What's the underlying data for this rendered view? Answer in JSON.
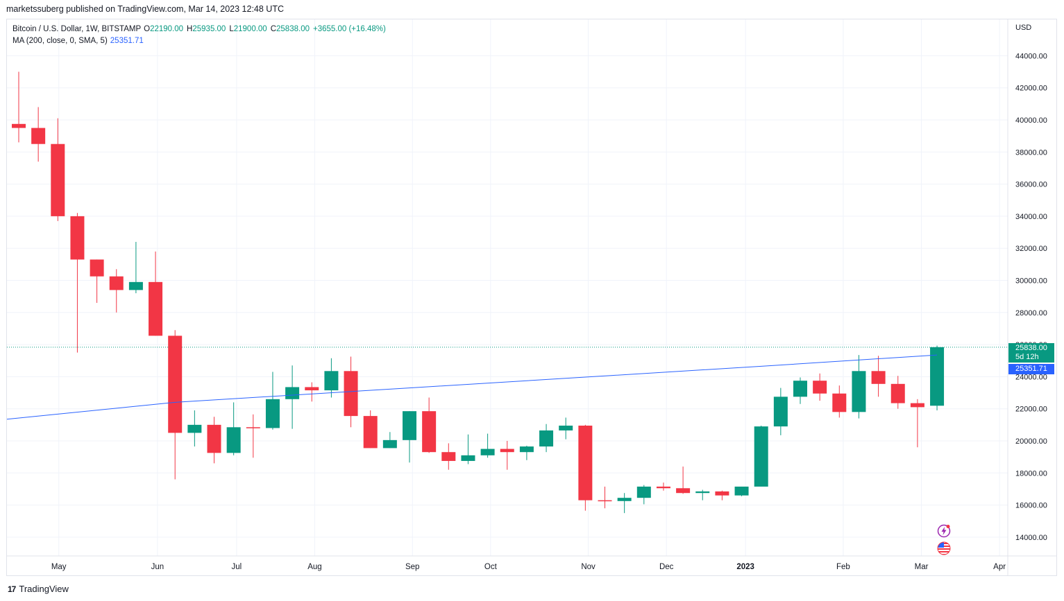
{
  "header": {
    "published": "marketssuberg published on TradingView.com, Mar 14, 2023 12:48 UTC"
  },
  "legend": {
    "symbol": "Bitcoin / U.S. Dollar, 1W, BITSTAMP",
    "o_key": "O",
    "o_val": "22190.00",
    "h_key": "H",
    "h_val": "25935.00",
    "l_key": "L",
    "l_val": "21900.00",
    "c_key": "C",
    "c_val": "25838.00",
    "change": "+3655.00 (+16.48%)",
    "ma_label": "MA (200, close, 0, SMA, 5)",
    "ma_value": "25351.71"
  },
  "axis": {
    "currency": "USD"
  },
  "price_tag": {
    "price": "25838.00",
    "countdown": "5d 12h"
  },
  "ma_tag": {
    "value": "25351.71"
  },
  "footer": {
    "brand": "TradingView",
    "logo": "17"
  },
  "colors": {
    "up": "#089981",
    "down": "#f23645",
    "ma": "#2962ff",
    "grid": "#f0f3fa"
  },
  "icons": [
    "lightning-icon",
    "us-flag-icon"
  ],
  "chart_data": {
    "type": "candlestick",
    "interval": "1W",
    "ylim": [
      13000,
      45500
    ],
    "y_ticks": [
      14000,
      16000,
      18000,
      20000,
      22000,
      24000,
      26000,
      28000,
      30000,
      32000,
      34000,
      36000,
      38000,
      40000,
      42000,
      44000
    ],
    "y_tick_labels": [
      "14000.00",
      "16000.00",
      "18000.00",
      "20000.00",
      "22000.00",
      "24000.00",
      "26000.00",
      "28000.00",
      "30000.00",
      "32000.00",
      "34000.00",
      "36000.00",
      "38000.00",
      "40000.00",
      "42000.00",
      "44000.00"
    ],
    "x_ticks": [
      {
        "label": "May",
        "i": 2.05
      },
      {
        "label": "Jun",
        "i": 7.1
      },
      {
        "label": "Jul",
        "i": 11.15
      },
      {
        "label": "Aug",
        "i": 15.15
      },
      {
        "label": "Sep",
        "i": 20.15
      },
      {
        "label": "Oct",
        "i": 24.15
      },
      {
        "label": "Nov",
        "i": 29.15
      },
      {
        "label": "Dec",
        "i": 33.15
      },
      {
        "label": "2023",
        "i": 37.2
      },
      {
        "label": "Feb",
        "i": 42.2
      },
      {
        "label": "Mar",
        "i": 46.2
      },
      {
        "label": "Apr",
        "i": 50.2
      }
    ],
    "candles": [
      {
        "o": 39750,
        "h": 43000,
        "l": 38600,
        "c": 39500
      },
      {
        "o": 39500,
        "h": 40800,
        "l": 37400,
        "c": 38500
      },
      {
        "o": 38500,
        "h": 40100,
        "l": 33700,
        "c": 34000
      },
      {
        "o": 34000,
        "h": 34200,
        "l": 25500,
        "c": 31300
      },
      {
        "o": 31300,
        "h": 31300,
        "l": 28600,
        "c": 30250
      },
      {
        "o": 30250,
        "h": 30700,
        "l": 28000,
        "c": 29400
      },
      {
        "o": 29400,
        "h": 32400,
        "l": 29200,
        "c": 29900
      },
      {
        "o": 29900,
        "h": 31800,
        "l": 26550,
        "c": 26550
      },
      {
        "o": 26550,
        "h": 26900,
        "l": 17600,
        "c": 20500
      },
      {
        "o": 20500,
        "h": 21900,
        "l": 19650,
        "c": 21000
      },
      {
        "o": 21000,
        "h": 21500,
        "l": 18600,
        "c": 19250
      },
      {
        "o": 19250,
        "h": 22400,
        "l": 19100,
        "c": 20850
      },
      {
        "o": 20850,
        "h": 21650,
        "l": 18950,
        "c": 20800
      },
      {
        "o": 20800,
        "h": 24300,
        "l": 20700,
        "c": 22600
      },
      {
        "o": 22600,
        "h": 24700,
        "l": 20750,
        "c": 23350
      },
      {
        "o": 23350,
        "h": 23650,
        "l": 22450,
        "c": 23150
      },
      {
        "o": 23150,
        "h": 25150,
        "l": 22700,
        "c": 24350
      },
      {
        "o": 24350,
        "h": 25250,
        "l": 20850,
        "c": 21550
      },
      {
        "o": 21550,
        "h": 21900,
        "l": 19550,
        "c": 19550
      },
      {
        "o": 19550,
        "h": 20550,
        "l": 19550,
        "c": 20050
      },
      {
        "o": 20050,
        "h": 21850,
        "l": 18650,
        "c": 21850
      },
      {
        "o": 21850,
        "h": 22700,
        "l": 19250,
        "c": 19300
      },
      {
        "o": 19300,
        "h": 19850,
        "l": 18200,
        "c": 18750
      },
      {
        "o": 18750,
        "h": 20400,
        "l": 18550,
        "c": 19100
      },
      {
        "o": 19100,
        "h": 20450,
        "l": 18950,
        "c": 19500
      },
      {
        "o": 19500,
        "h": 20000,
        "l": 18200,
        "c": 19300
      },
      {
        "o": 19300,
        "h": 19700,
        "l": 18800,
        "c": 19650
      },
      {
        "o": 19650,
        "h": 21050,
        "l": 19300,
        "c": 20650
      },
      {
        "o": 20650,
        "h": 21450,
        "l": 20100,
        "c": 20950
      },
      {
        "o": 20950,
        "h": 21000,
        "l": 15650,
        "c": 16300
      },
      {
        "o": 16300,
        "h": 17150,
        "l": 15800,
        "c": 16250
      },
      {
        "o": 16250,
        "h": 16750,
        "l": 15500,
        "c": 16450
      },
      {
        "o": 16450,
        "h": 17250,
        "l": 16050,
        "c": 17150
      },
      {
        "o": 17150,
        "h": 17400,
        "l": 16900,
        "c": 17050
      },
      {
        "o": 17050,
        "h": 18400,
        "l": 16700,
        "c": 16750
      },
      {
        "o": 16750,
        "h": 16950,
        "l": 16300,
        "c": 16850
      },
      {
        "o": 16850,
        "h": 16900,
        "l": 16300,
        "c": 16600
      },
      {
        "o": 16600,
        "h": 17150,
        "l": 16550,
        "c": 17150
      },
      {
        "o": 17150,
        "h": 20950,
        "l": 17150,
        "c": 20900
      },
      {
        "o": 20900,
        "h": 23300,
        "l": 20350,
        "c": 22750
      },
      {
        "o": 22750,
        "h": 23950,
        "l": 22300,
        "c": 23750
      },
      {
        "o": 23750,
        "h": 24200,
        "l": 22500,
        "c": 22950
      },
      {
        "o": 22950,
        "h": 23450,
        "l": 21450,
        "c": 21800
      },
      {
        "o": 21800,
        "h": 25350,
        "l": 21400,
        "c": 24350
      },
      {
        "o": 24350,
        "h": 25300,
        "l": 22750,
        "c": 23550
      },
      {
        "o": 23550,
        "h": 24050,
        "l": 22000,
        "c": 22350
      },
      {
        "o": 22350,
        "h": 22600,
        "l": 19600,
        "c": 22100
      },
      {
        "o": 22190,
        "h": 25935,
        "l": 21900,
        "c": 25838
      }
    ],
    "ma_line": [
      {
        "i": -1,
        "v": 21350
      },
      {
        "i": 8,
        "v": 22400
      },
      {
        "i": 20,
        "v": 23300
      },
      {
        "i": 38,
        "v": 24650
      },
      {
        "i": 47,
        "v": 25351.71
      }
    ]
  }
}
